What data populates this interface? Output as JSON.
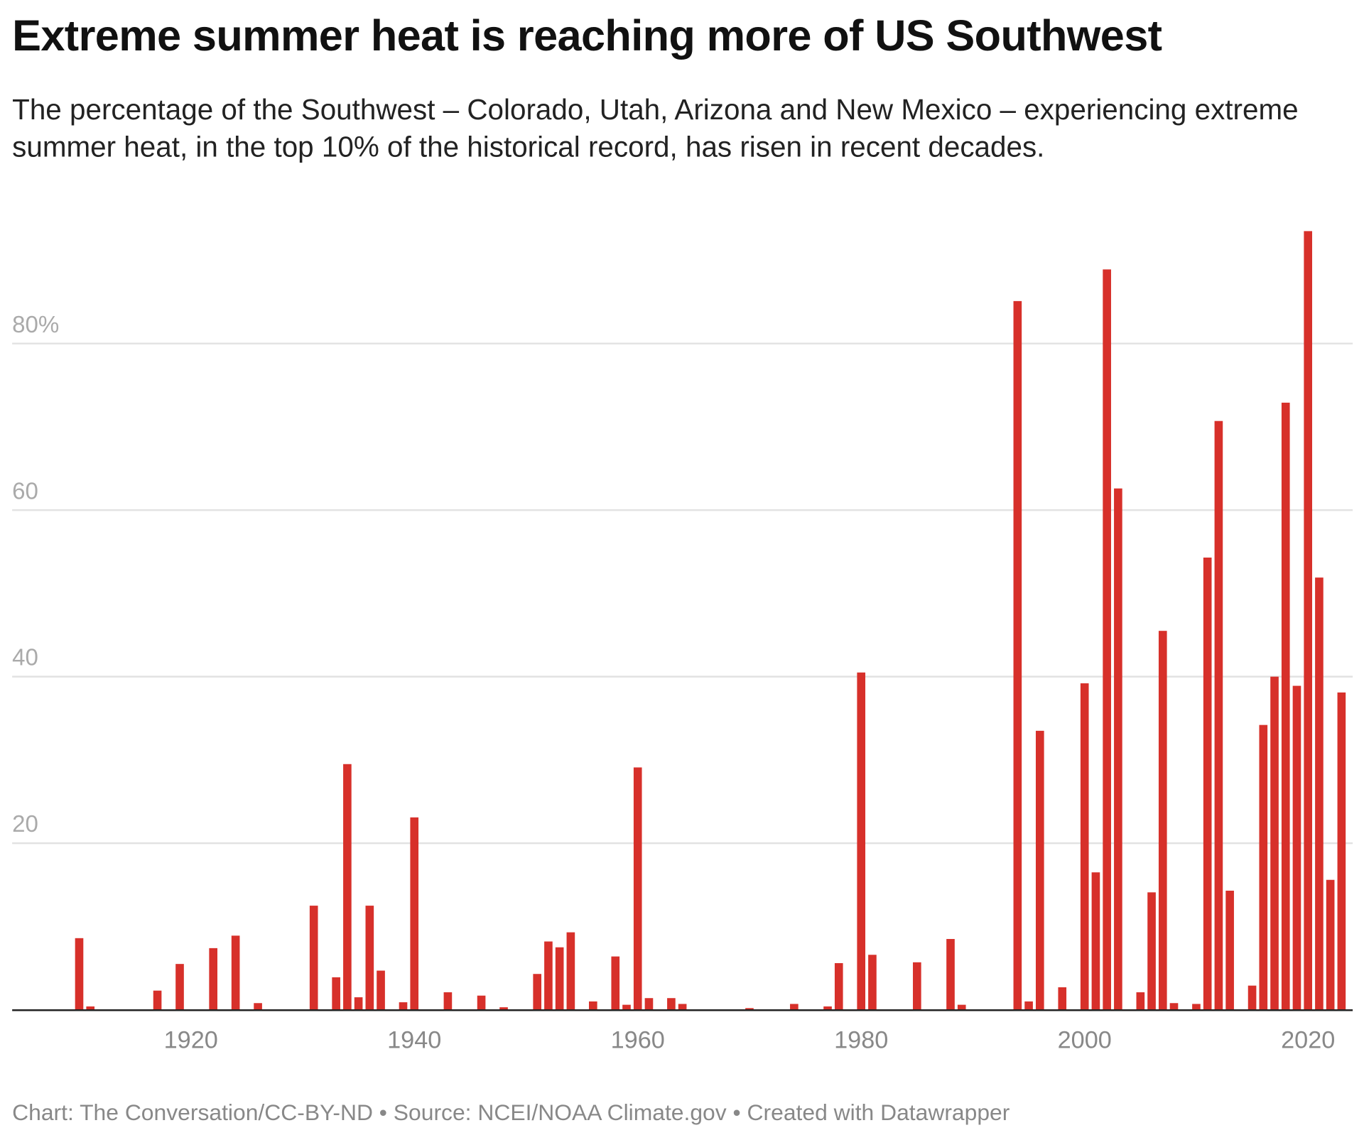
{
  "title": "Extreme summer heat is reaching more of US Southwest",
  "subtitle": "The percentage of the Southwest – Colorado, Utah, Arizona and New Mexico – experiencing extreme summer heat, in the top 10% of the historical record, has risen in recent decades.",
  "footer": "Chart: The Conversation/CC-BY-ND • Source: NCEI/NOAA Climate.gov  • Created with Datawrapper",
  "chart_data": {
    "type": "bar",
    "title": "Extreme summer heat is reaching more of US Southwest",
    "xlabel": "",
    "ylabel": "",
    "xlim": [
      1904,
      2024
    ],
    "ylim": [
      0,
      100
    ],
    "grid": true,
    "bar_color": "#d7302a",
    "y_ticks": [
      {
        "value": 20,
        "label": "20"
      },
      {
        "value": 40,
        "label": "40"
      },
      {
        "value": 60,
        "label": "60"
      },
      {
        "value": 80,
        "label": "80%"
      }
    ],
    "x_ticks": [
      {
        "value": 1920,
        "label": "1920"
      },
      {
        "value": 1940,
        "label": "1940"
      },
      {
        "value": 1960,
        "label": "1960"
      },
      {
        "value": 1980,
        "label": "1980"
      },
      {
        "value": 2000,
        "label": "2000"
      },
      {
        "value": 2020,
        "label": "2020"
      }
    ],
    "x": [
      1910,
      1911,
      1917,
      1919,
      1922,
      1924,
      1926,
      1931,
      1933,
      1934,
      1935,
      1936,
      1937,
      1939,
      1940,
      1943,
      1946,
      1948,
      1951,
      1952,
      1953,
      1954,
      1956,
      1958,
      1959,
      1960,
      1961,
      1963,
      1964,
      1970,
      1974,
      1977,
      1978,
      1980,
      1981,
      1985,
      1988,
      1989,
      1994,
      1995,
      1996,
      1998,
      2000,
      2001,
      2002,
      2003,
      2005,
      2006,
      2007,
      2008,
      2010,
      2011,
      2012,
      2013,
      2015,
      2016,
      2017,
      2018,
      2019,
      2020,
      2021,
      2022,
      2023
    ],
    "values": [
      8.6,
      0.4,
      2.3,
      5.5,
      7.4,
      8.9,
      0.8,
      12.5,
      3.9,
      29.5,
      1.5,
      12.5,
      4.7,
      0.9,
      23.1,
      2.1,
      1.7,
      0.3,
      4.3,
      8.2,
      7.5,
      9.3,
      1.0,
      6.4,
      0.6,
      29.1,
      1.4,
      1.4,
      0.7,
      0.2,
      0.7,
      0.4,
      5.6,
      40.5,
      6.6,
      5.7,
      8.5,
      0.6,
      85.1,
      1.0,
      33.5,
      2.7,
      39.2,
      16.5,
      88.9,
      62.6,
      2.1,
      14.1,
      45.5,
      0.8,
      0.7,
      54.3,
      70.7,
      14.3,
      2.9,
      34.2,
      40.0,
      72.9,
      38.9,
      93.5,
      51.9,
      15.6,
      38.1
    ]
  }
}
